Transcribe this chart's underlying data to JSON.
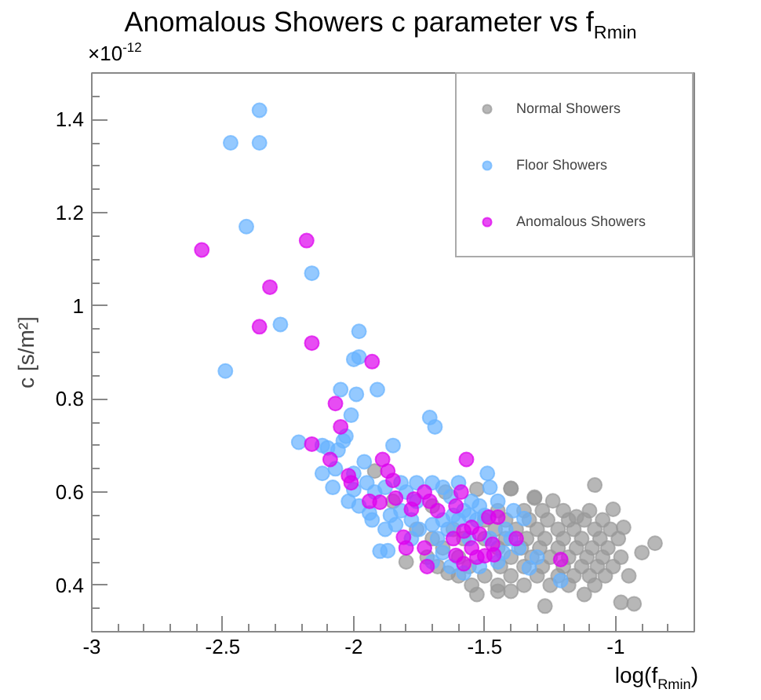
{
  "chart_data": {
    "type": "scatter",
    "title": "Anomalous Showers c parameter vs f$_{Rmin}$",
    "xlabel": "log(f$_{Rmin}$)",
    "ylabel": "c [s/m²]",
    "annotations": [
      "×10$^{-12}$"
    ],
    "xlim": [
      -3,
      -0.7
    ],
    "ylim": [
      0.3,
      1.5
    ],
    "xticks": [
      -3,
      {
        "value": -2.9,
        "label": null
      },
      {
        "value": -2.8,
        "label": null
      },
      {
        "value": -2.7,
        "label": null
      },
      {
        "value": -2.6,
        "label": null
      },
      -2.5,
      {
        "value": -2.4,
        "label": null
      },
      {
        "value": -2.3,
        "label": null
      },
      {
        "value": -2.2,
        "label": null
      },
      {
        "value": -2.1,
        "label": null
      },
      -2,
      {
        "value": -1.9,
        "label": null
      },
      {
        "value": -1.8,
        "label": null
      },
      {
        "value": -1.7,
        "label": null
      },
      {
        "value": -1.6,
        "label": null
      },
      -1.5,
      {
        "value": -1.4,
        "label": null
      },
      {
        "value": -1.3,
        "label": null
      },
      {
        "value": -1.2,
        "label": null
      },
      {
        "value": -1.1,
        "label": null
      },
      -1,
      {
        "value": -0.9,
        "label": null
      },
      {
        "value": -0.8,
        "label": null
      }
    ],
    "yticks": [
      {
        "value": 0.35,
        "label": null
      },
      0.4,
      {
        "value": 0.45,
        "label": null
      },
      {
        "value": 0.5,
        "label": null
      },
      {
        "value": 0.55,
        "label": null
      },
      0.6,
      {
        "value": 0.65,
        "label": null
      },
      {
        "value": 0.7,
        "label": null
      },
      {
        "value": 0.75,
        "label": null
      },
      0.8,
      {
        "value": 0.85,
        "label": null
      },
      {
        "value": 0.9,
        "label": null
      },
      {
        "value": 0.95,
        "label": null
      },
      1,
      {
        "value": 1.05,
        "label": null
      },
      {
        "value": 1.1,
        "label": null
      },
      {
        "value": 1.15,
        "label": null
      },
      1.2,
      {
        "value": 1.25,
        "label": null
      },
      {
        "value": 1.3,
        "label": null
      },
      {
        "value": 1.35,
        "label": null
      },
      1.4,
      {
        "value": 1.45,
        "label": null
      }
    ],
    "grid": false,
    "legend": "top right",
    "marker": "circle",
    "series": [
      {
        "name": "Normal Showers",
        "color": "#999999",
        "x": [
          -1.08,
          -1.4,
          -1.31,
          -1.24,
          -1.15,
          -1.01,
          -0.97,
          -0.85,
          -0.9,
          -1.27,
          -0.93,
          -0.98,
          -0.95,
          -1.12,
          -1.4,
          -1.53,
          -1.45,
          -1.53,
          -1.4,
          -1.31,
          -1.64,
          -1.92,
          -1.45,
          -1.35,
          -1.28,
          -1.2,
          -1.1,
          -1.5,
          -1.42,
          -1.33,
          -1.26,
          -1.18,
          -1.12,
          -1.05,
          -1.62,
          -1.46,
          -1.38,
          -1.3,
          -1.22,
          -1.16,
          -1.08,
          -1.02,
          -1.7,
          -1.58,
          -1.5,
          -1.42,
          -1.34,
          -1.27,
          -1.2,
          -1.13,
          -1.06,
          -0.99,
          -1.66,
          -1.45,
          -1.36,
          -1.29,
          -1.22,
          -1.15,
          -1.09,
          -1.03,
          -1.72,
          -1.6,
          -1.4,
          -1.32,
          -1.25,
          -1.18,
          -1.11,
          -1.05,
          -0.98,
          -1.68,
          -1.56,
          -1.44,
          -1.35,
          -1.28,
          -1.2,
          -1.13,
          -1.07,
          -1.01,
          -1.6,
          -1.5,
          -1.4,
          -1.3,
          -1.22,
          -1.16,
          -1.1,
          -1.04,
          -1.55,
          -1.45,
          -1.35,
          -1.25,
          -1.18,
          -1.08,
          -1.8,
          -1.76,
          -1.85,
          -1.7,
          -1.65
        ],
        "values": [
          0.615,
          0.607,
          0.589,
          0.581,
          0.547,
          0.563,
          0.524,
          0.49,
          0.47,
          0.355,
          0.36,
          0.363,
          0.42,
          0.38,
          0.387,
          0.38,
          0.387,
          0.606,
          0.608,
          0.587,
          0.426,
          0.645,
          0.56,
          0.56,
          0.56,
          0.56,
          0.56,
          0.54,
          0.54,
          0.54,
          0.54,
          0.54,
          0.54,
          0.54,
          0.52,
          0.52,
          0.52,
          0.52,
          0.52,
          0.52,
          0.52,
          0.52,
          0.5,
          0.5,
          0.5,
          0.5,
          0.5,
          0.5,
          0.5,
          0.5,
          0.5,
          0.5,
          0.48,
          0.48,
          0.48,
          0.48,
          0.48,
          0.48,
          0.48,
          0.48,
          0.46,
          0.46,
          0.46,
          0.46,
          0.46,
          0.46,
          0.46,
          0.46,
          0.46,
          0.44,
          0.44,
          0.44,
          0.44,
          0.44,
          0.44,
          0.44,
          0.44,
          0.44,
          0.42,
          0.42,
          0.42,
          0.42,
          0.42,
          0.42,
          0.42,
          0.42,
          0.4,
          0.4,
          0.4,
          0.4,
          0.4,
          0.4,
          0.45,
          0.52,
          0.58,
          0.57,
          0.6
        ]
      },
      {
        "name": "Floor Showers",
        "color": "#66b2ff",
        "x": [
          -2.36,
          -2.47,
          -2.36,
          -2.41,
          -2.16,
          -2.28,
          -1.98,
          -1.98,
          -2.0,
          -2.49,
          -2.21,
          -2.05,
          -1.99,
          -1.91,
          -2.01,
          -1.71,
          -1.69,
          -2.12,
          -2.1,
          -2.06,
          -2.04,
          -2.03,
          -1.85,
          -2.07,
          -1.96,
          -1.49,
          -1.48,
          -2.0,
          -1.9,
          -1.87,
          -1.58,
          -1.94,
          -1.88,
          -1.21,
          -1.33,
          -1.39,
          -1.35,
          -2.08,
          -2.12,
          -2.0,
          -1.95,
          -1.92,
          -1.88,
          -1.82,
          -1.8,
          -1.76,
          -1.7,
          -1.66,
          -1.63,
          -1.98,
          -1.93,
          -1.86,
          -1.84,
          -1.78,
          -1.75,
          -1.7,
          -1.66,
          -1.62,
          -1.58,
          -1.55,
          -1.52,
          -1.5,
          -1.53,
          -1.68,
          -1.64,
          -1.6,
          -1.56,
          -1.45,
          -1.42,
          -1.4,
          -1.43,
          -1.48,
          -1.56,
          -1.66,
          -1.7,
          -1.63,
          -1.52,
          -1.45,
          -1.78,
          -1.82,
          -2.02,
          -1.76,
          -1.6,
          -1.37,
          -1.3
        ],
        "values": [
          1.42,
          1.35,
          1.35,
          1.17,
          1.07,
          0.96,
          0.945,
          0.89,
          0.885,
          0.86,
          0.707,
          0.82,
          0.81,
          0.82,
          0.765,
          0.76,
          0.74,
          0.7,
          0.695,
          0.69,
          0.71,
          0.72,
          0.7,
          0.65,
          0.665,
          0.64,
          0.61,
          0.605,
          0.473,
          0.474,
          0.426,
          0.555,
          0.52,
          0.41,
          0.437,
          0.56,
          0.543,
          0.61,
          0.64,
          0.64,
          0.62,
          0.6,
          0.61,
          0.62,
          0.6,
          0.62,
          0.62,
          0.61,
          0.59,
          0.57,
          0.54,
          0.55,
          0.53,
          0.54,
          0.52,
          0.53,
          0.54,
          0.55,
          0.56,
          0.58,
          0.57,
          0.55,
          0.54,
          0.5,
          0.52,
          0.54,
          0.55,
          0.58,
          0.52,
          0.5,
          0.47,
          0.5,
          0.5,
          0.47,
          0.45,
          0.44,
          0.44,
          0.45,
          0.5,
          0.56,
          0.58,
          0.58,
          0.62,
          0.48,
          0.46
        ]
      },
      {
        "name": "Anomalous Showers",
        "color": "#dd00ee",
        "x": [
          -2.58,
          -2.18,
          -2.32,
          -2.36,
          -2.16,
          -1.93,
          -2.16,
          -2.07,
          -2.05,
          -2.09,
          -1.89,
          -1.57,
          -1.87,
          -1.85,
          -2.02,
          -2.01,
          -1.94,
          -1.9,
          -1.84,
          -1.78,
          -1.77,
          -1.73,
          -1.71,
          -1.68,
          -1.61,
          -1.59,
          -1.81,
          -1.8,
          -1.73,
          -1.72,
          -1.62,
          -1.58,
          -1.55,
          -1.52,
          -1.55,
          -1.61,
          -1.58,
          -1.53,
          -1.5,
          -1.465,
          -1.47,
          -1.485,
          -1.45,
          -1.38,
          -1.21
        ],
        "values": [
          1.12,
          1.14,
          1.04,
          0.955,
          0.92,
          0.88,
          0.703,
          0.79,
          0.74,
          0.67,
          0.67,
          0.67,
          0.645,
          0.625,
          0.635,
          0.62,
          0.58,
          0.578,
          0.587,
          0.563,
          0.585,
          0.6,
          0.58,
          0.56,
          0.57,
          0.6,
          0.503,
          0.48,
          0.48,
          0.44,
          0.5,
          0.516,
          0.524,
          0.51,
          0.48,
          0.464,
          0.446,
          0.46,
          0.463,
          0.465,
          0.488,
          0.546,
          0.546,
          0.5,
          0.455
        ]
      }
    ]
  }
}
